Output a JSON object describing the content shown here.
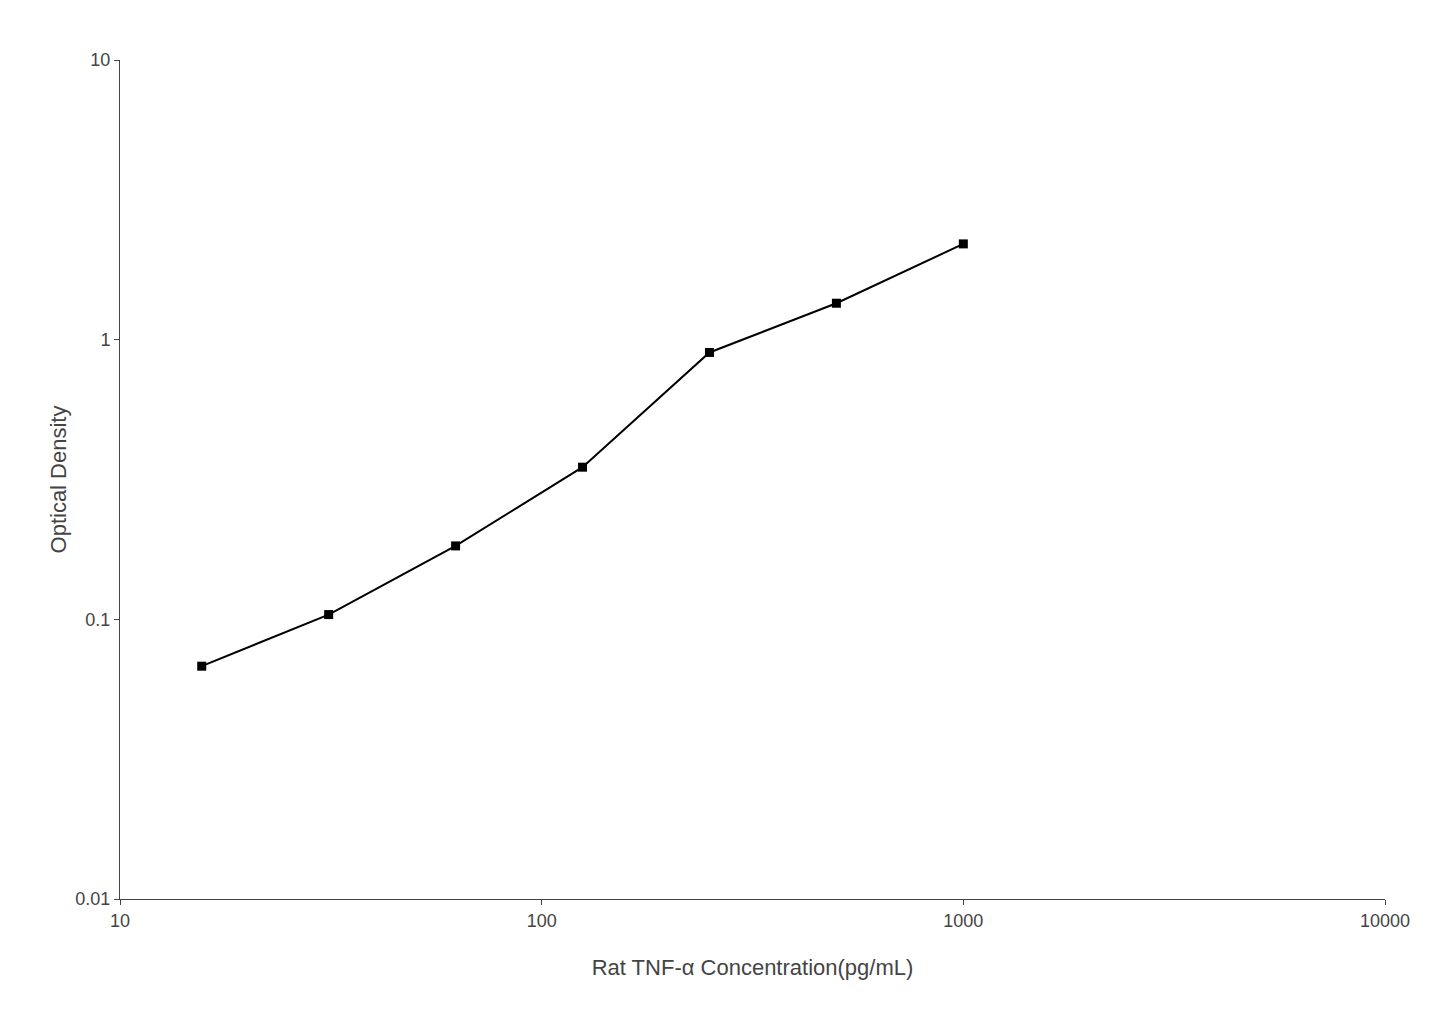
{
  "chart_data": {
    "type": "line",
    "xlabel": "Rat TNF-α Concentration(pg/mL)",
    "ylabel": "Optical Density",
    "x": [
      15.625,
      31.25,
      62.5,
      125,
      250,
      500,
      1000
    ],
    "values": [
      0.068,
      0.104,
      0.183,
      0.35,
      0.9,
      1.35,
      2.2
    ],
    "color": "#000000",
    "marker": "square",
    "log": true,
    "xlim": [
      10,
      10000
    ],
    "ylim": [
      0.01,
      10
    ],
    "xticks": [
      10,
      100,
      1000,
      10000
    ],
    "yticks": [
      0.01,
      0.1,
      1,
      10
    ],
    "grid": false
  }
}
